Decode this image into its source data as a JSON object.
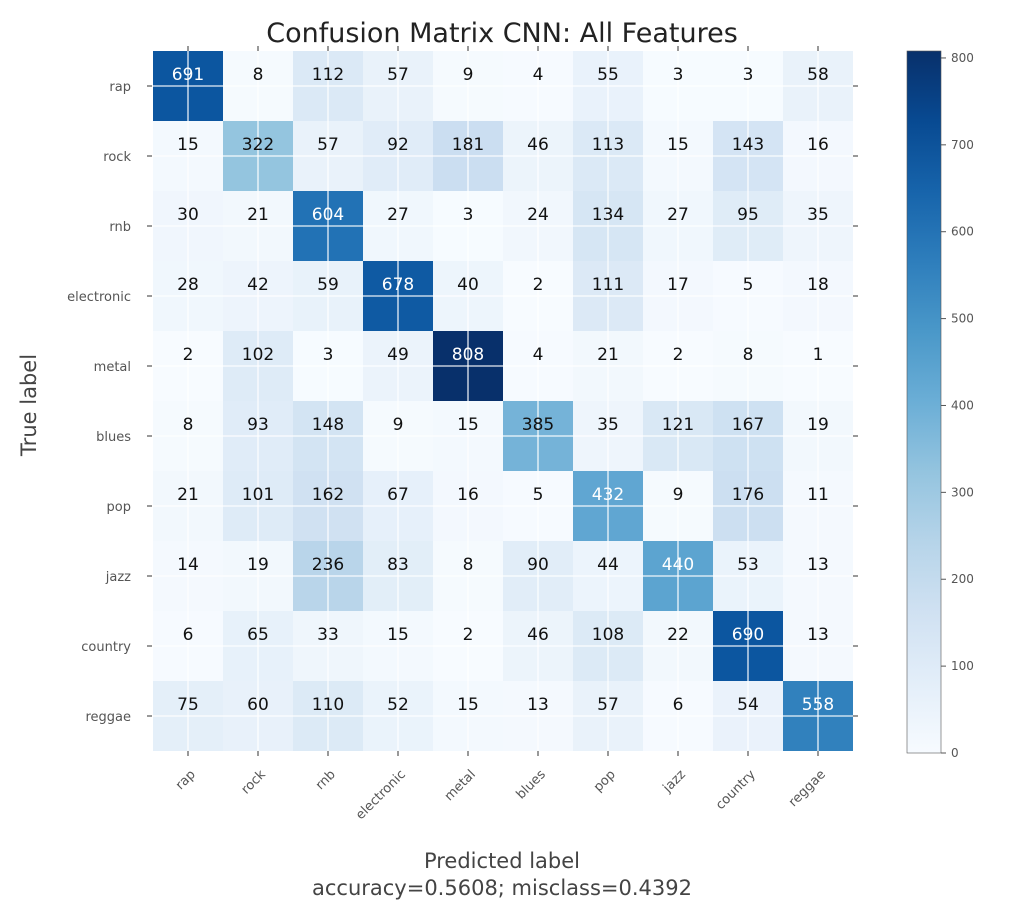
{
  "chart_data": {
    "type": "heatmap",
    "title": "Confusion Matrix CNN: All Features",
    "xlabel": "Predicted label",
    "ylabel": "True label",
    "subtitle": "accuracy=0.5608; misclass=0.4392",
    "x_categories": [
      "rap",
      "rock",
      "rnb",
      "electronic",
      "metal",
      "blues",
      "pop",
      "jazz",
      "country",
      "reggae"
    ],
    "y_categories": [
      "rap",
      "rock",
      "rnb",
      "electronic",
      "metal",
      "blues",
      "pop",
      "jazz",
      "country",
      "reggae"
    ],
    "matrix": [
      [
        691,
        8,
        112,
        57,
        9,
        4,
        55,
        3,
        3,
        58
      ],
      [
        15,
        322,
        57,
        92,
        181,
        46,
        113,
        15,
        143,
        16
      ],
      [
        30,
        21,
        604,
        27,
        3,
        24,
        134,
        27,
        95,
        35
      ],
      [
        28,
        42,
        59,
        678,
        40,
        2,
        111,
        17,
        5,
        18
      ],
      [
        2,
        102,
        3,
        49,
        808,
        4,
        21,
        2,
        8,
        1
      ],
      [
        8,
        93,
        148,
        9,
        15,
        385,
        35,
        121,
        167,
        19
      ],
      [
        21,
        101,
        162,
        67,
        16,
        5,
        432,
        9,
        176,
        11
      ],
      [
        14,
        19,
        236,
        83,
        8,
        90,
        44,
        440,
        53,
        13
      ],
      [
        6,
        65,
        33,
        15,
        2,
        46,
        108,
        22,
        690,
        13
      ],
      [
        75,
        60,
        110,
        52,
        15,
        13,
        57,
        6,
        54,
        558
      ]
    ],
    "colormap": "Blues",
    "colorbar": {
      "range": [
        0,
        808
      ],
      "ticks": [
        0,
        100,
        200,
        300,
        400,
        500,
        600,
        700,
        800
      ]
    },
    "grid": true
  }
}
